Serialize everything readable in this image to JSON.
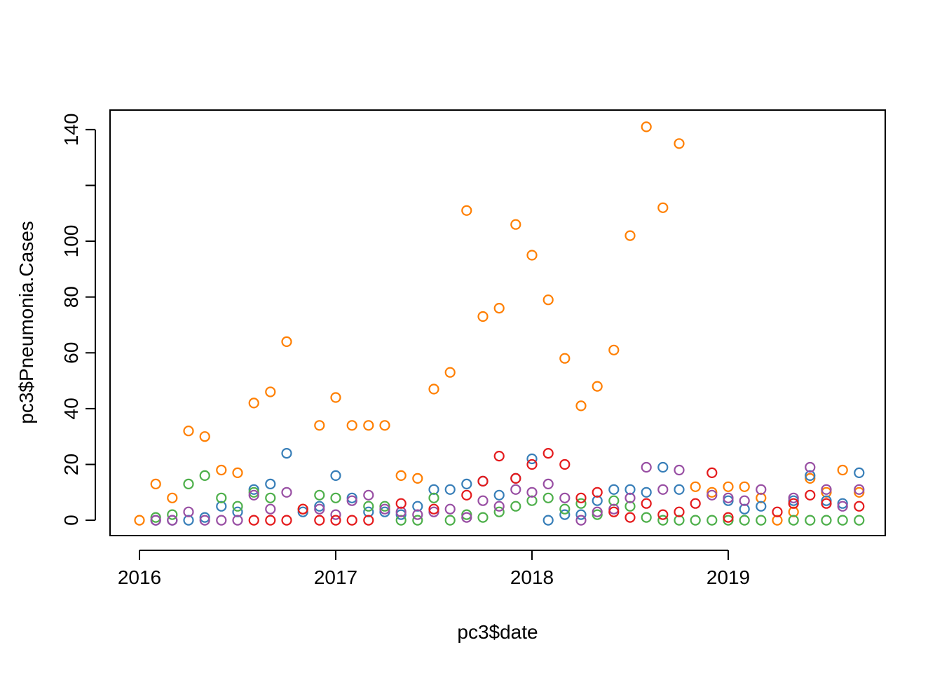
{
  "chart_data": {
    "type": "scatter",
    "title": "",
    "xlabel": "pc3$date",
    "ylabel": "pc3$Pneumonia.Cases",
    "xlim": [
      2015.85,
      2019.8
    ],
    "ylim": [
      -5.5,
      147
    ],
    "x_ticks": [
      2016,
      2017,
      2018,
      2019
    ],
    "x_tick_labels": [
      "2016",
      "2017",
      "2018",
      "2019"
    ],
    "y_ticks": [
      0,
      20,
      40,
      60,
      80,
      100,
      120,
      140
    ],
    "y_tick_labels": [
      "0",
      "20",
      "40",
      "60",
      "80",
      "100",
      "",
      "140"
    ],
    "marker": "open-circle",
    "grid": false,
    "legend": "none",
    "series": [
      {
        "color": "#ff7f00",
        "x": [
          2016.0,
          2016.083,
          2016.167,
          2016.25,
          2016.333,
          2016.417,
          2016.5,
          2016.583,
          2016.667,
          2016.75,
          2016.833,
          2016.917,
          2017.0,
          2017.083,
          2017.167,
          2017.25,
          2017.333,
          2017.417,
          2017.5,
          2017.583,
          2017.667,
          2017.75,
          2017.833,
          2017.917,
          2018.0,
          2018.083,
          2018.167,
          2018.25,
          2018.333,
          2018.417,
          2018.5,
          2018.583,
          2018.667,
          2018.75,
          2018.833,
          2018.917,
          2019.0,
          2019.083,
          2019.167,
          2019.25,
          2019.333,
          2019.417,
          2019.5,
          2019.583,
          2019.667
        ],
        "y": [
          0,
          13,
          8,
          32,
          30,
          18,
          17,
          42,
          46,
          64,
          4,
          34,
          44,
          34,
          34,
          34,
          16,
          15,
          47,
          53,
          111,
          73,
          76,
          106,
          95,
          79,
          58,
          41,
          48,
          61,
          102,
          141,
          112,
          135,
          12,
          10,
          12,
          12,
          8,
          0,
          3,
          15,
          10,
          18,
          10
        ]
      },
      {
        "color": "#377eb8",
        "x": [
          2016.083,
          2016.167,
          2016.25,
          2016.333,
          2016.417,
          2016.5,
          2016.583,
          2016.667,
          2016.75,
          2016.833,
          2016.917,
          2017.0,
          2017.083,
          2017.167,
          2017.25,
          2017.333,
          2017.417,
          2017.5,
          2017.583,
          2017.667,
          2017.75,
          2017.833,
          2017.917,
          2018.0,
          2018.083,
          2018.167,
          2018.25,
          2018.333,
          2018.417,
          2018.5,
          2018.583,
          2018.667,
          2018.75,
          2019.0,
          2019.083,
          2019.167,
          2019.333,
          2019.417,
          2019.5,
          2019.583,
          2019.667
        ],
        "y": [
          0,
          0,
          0,
          1,
          5,
          3,
          11,
          13,
          24,
          3,
          5,
          16,
          8,
          3,
          3,
          2,
          5,
          11,
          11,
          13,
          14,
          9,
          15,
          22,
          0,
          2,
          2,
          7,
          11,
          11,
          10,
          19,
          11,
          7,
          4,
          5,
          7,
          16,
          7,
          6,
          17
        ]
      },
      {
        "color": "#4daf4a",
        "x": [
          2016.083,
          2016.167,
          2016.25,
          2016.333,
          2016.417,
          2016.5,
          2016.583,
          2016.667,
          2016.917,
          2017.0,
          2017.167,
          2017.25,
          2017.333,
          2017.417,
          2017.5,
          2017.583,
          2017.667,
          2017.75,
          2017.833,
          2017.917,
          2018.0,
          2018.083,
          2018.167,
          2018.25,
          2018.333,
          2018.417,
          2018.5,
          2018.583,
          2018.667,
          2018.75,
          2018.833,
          2018.917,
          2019.0,
          2019.083,
          2019.167,
          2019.333,
          2019.417,
          2019.5,
          2019.583,
          2019.667
        ],
        "y": [
          1,
          2,
          13,
          16,
          8,
          5,
          10,
          8,
          9,
          8,
          5,
          5,
          0,
          0,
          8,
          0,
          2,
          1,
          3,
          5,
          7,
          8,
          4,
          6,
          2,
          7,
          5,
          1,
          0,
          0,
          0,
          0,
          0,
          0,
          0,
          0,
          0,
          0,
          0,
          0
        ]
      },
      {
        "color": "#984ea3",
        "x": [
          2016.083,
          2016.167,
          2016.25,
          2016.333,
          2016.417,
          2016.5,
          2016.583,
          2016.667,
          2016.75,
          2016.917,
          2017.0,
          2017.083,
          2017.167,
          2017.25,
          2017.333,
          2017.417,
          2017.5,
          2017.583,
          2017.667,
          2017.75,
          2017.833,
          2017.917,
          2018.0,
          2018.083,
          2018.167,
          2018.25,
          2018.333,
          2018.417,
          2018.5,
          2018.583,
          2018.667,
          2018.75,
          2018.917,
          2019.0,
          2019.083,
          2019.167,
          2019.333,
          2019.417,
          2019.5,
          2019.583,
          2019.667
        ],
        "y": [
          0,
          0,
          3,
          0,
          0,
          0,
          9,
          4,
          10,
          4,
          2,
          7,
          9,
          4,
          3,
          2,
          3,
          4,
          1,
          7,
          5,
          11,
          10,
          13,
          8,
          0,
          3,
          4,
          8,
          19,
          11,
          18,
          9,
          8,
          7,
          11,
          8,
          19,
          11,
          5,
          11
        ]
      },
      {
        "color": "#e41a1c",
        "x": [
          2016.583,
          2016.667,
          2016.75,
          2016.833,
          2016.917,
          2017.0,
          2017.083,
          2017.167,
          2017.333,
          2017.5,
          2017.667,
          2017.75,
          2017.833,
          2017.917,
          2018.0,
          2018.083,
          2018.167,
          2018.25,
          2018.333,
          2018.417,
          2018.5,
          2018.583,
          2018.667,
          2018.75,
          2018.833,
          2018.917,
          2019.0,
          2019.25,
          2019.333,
          2019.417,
          2019.5,
          2019.667
        ],
        "y": [
          0,
          0,
          0,
          4,
          0,
          0,
          0,
          0,
          6,
          4,
          9,
          14,
          23,
          15,
          20,
          24,
          20,
          8,
          10,
          3,
          1,
          6,
          2,
          3,
          6,
          17,
          1,
          3,
          6,
          9,
          6,
          5
        ]
      }
    ]
  }
}
